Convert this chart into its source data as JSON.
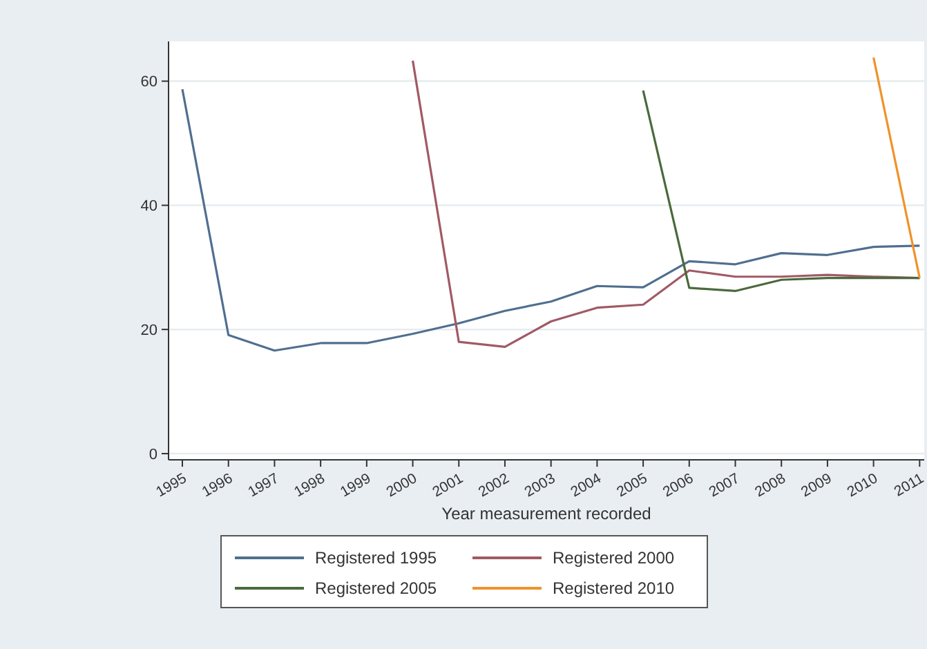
{
  "chart_data": {
    "type": "line",
    "xlabel": "Year measurement recorded",
    "xlim": [
      1994.7,
      2011.1
    ],
    "xticks": [
      1995,
      1996,
      1997,
      1998,
      1999,
      2000,
      2001,
      2002,
      2003,
      2004,
      2005,
      2006,
      2007,
      2008,
      2009,
      2010,
      2011
    ],
    "ylim": [
      -1,
      66.4
    ],
    "yticks": [
      0,
      20,
      40,
      60
    ],
    "grid": "y",
    "legend": "bottom",
    "marker": "none",
    "line_style": "solid",
    "series": [
      {
        "name": "Registered 1995",
        "color": "#4f6f8f",
        "x": [
          1995,
          1996,
          1997,
          1998,
          1999,
          2000,
          2001,
          2002,
          2003,
          2004,
          2005,
          2006,
          2007,
          2008,
          2009,
          2010,
          2011
        ],
        "values": [
          58.7,
          19.1,
          16.6,
          17.8,
          17.8,
          19.3,
          21,
          23,
          24.5,
          27,
          26.8,
          31,
          30.5,
          32.3,
          32,
          33.3,
          33.5
        ]
      },
      {
        "name": "Registered 2000",
        "color": "#a05a64",
        "x": [
          2000,
          2001,
          2002,
          2003,
          2004,
          2005,
          2006,
          2007,
          2008,
          2009,
          2010,
          2011
        ],
        "values": [
          63.3,
          18,
          17.2,
          21.3,
          23.5,
          24,
          29.5,
          28.5,
          28.5,
          28.8,
          28.5,
          28.3
        ]
      },
      {
        "name": "Registered 2005",
        "color": "#4a6a3c",
        "x": [
          2005,
          2006,
          2007,
          2008,
          2009,
          2010,
          2011
        ],
        "values": [
          58.5,
          26.7,
          26.2,
          28,
          28.3,
          28.3,
          28.3
        ]
      },
      {
        "name": "Registered 2010",
        "color": "#f0922a",
        "x": [
          2010,
          2011
        ],
        "values": [
          63.8,
          28.3
        ]
      }
    ]
  }
}
